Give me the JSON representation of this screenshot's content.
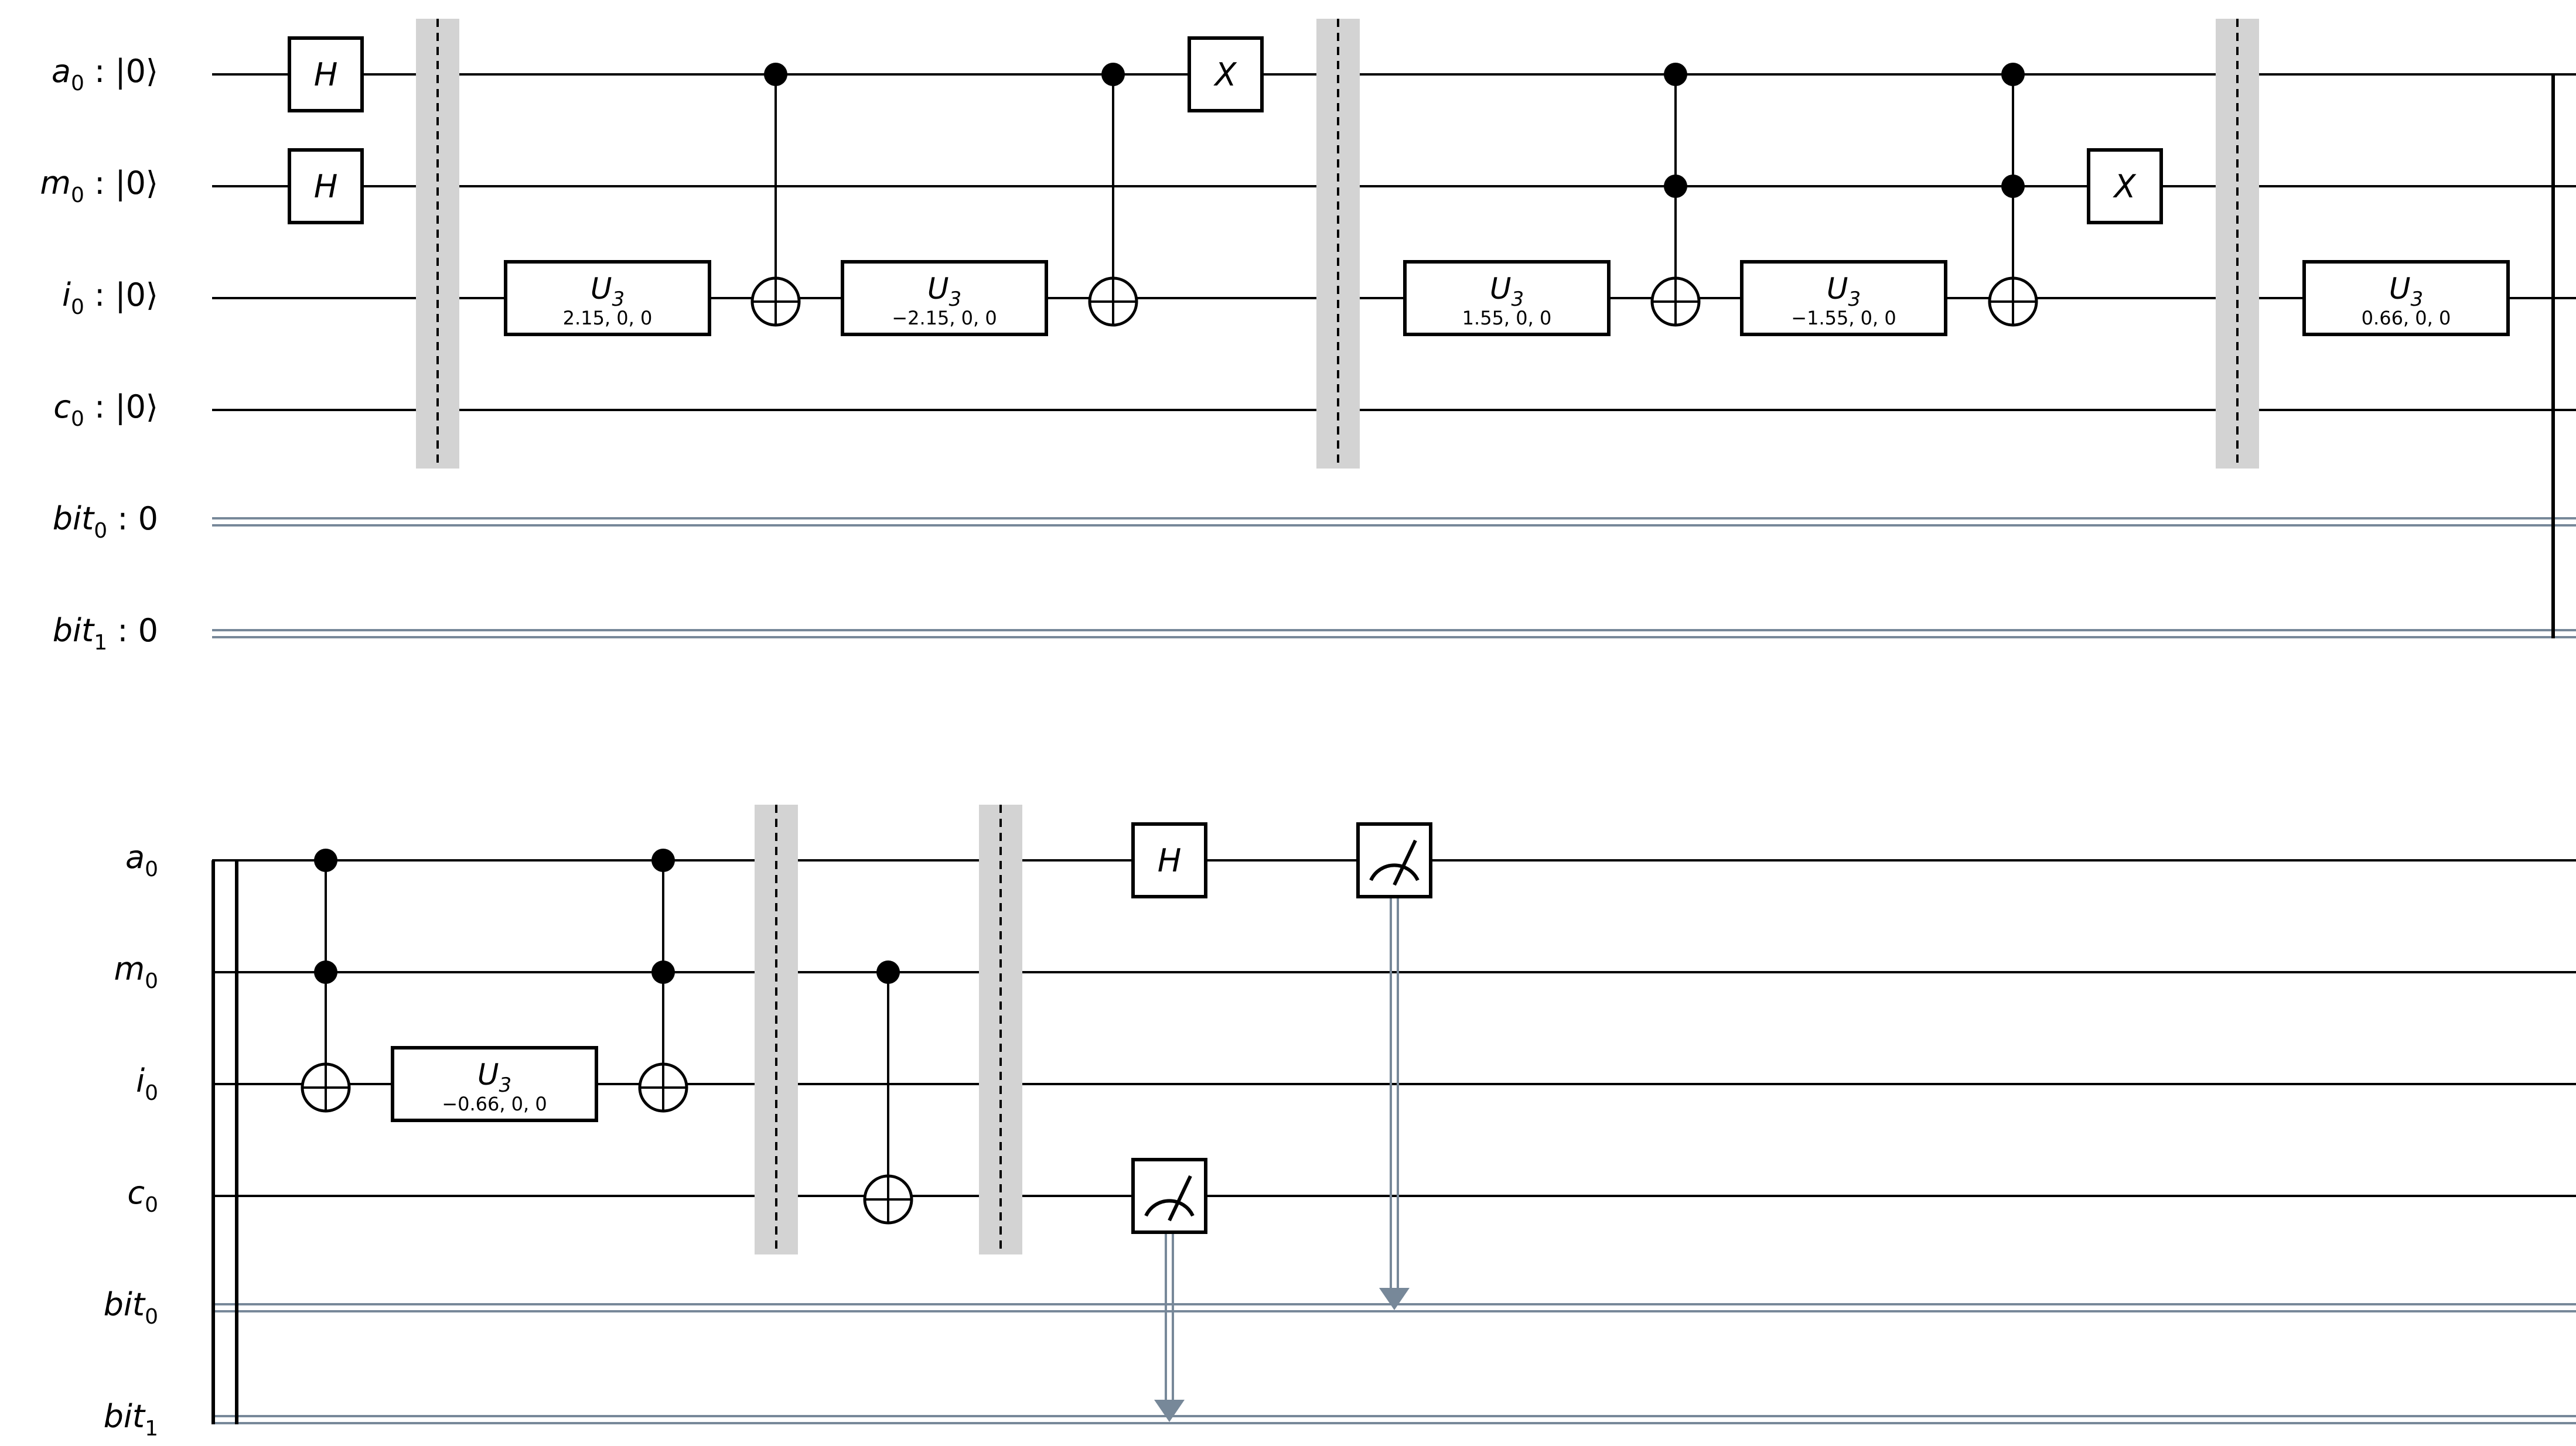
{
  "row1": {
    "labels": [
      {
        "base": "a",
        "sub": "0",
        "suffix": " : |0⟩"
      },
      {
        "base": "m",
        "sub": "0",
        "suffix": " : |0⟩"
      },
      {
        "base": "i",
        "sub": "0",
        "suffix": " : |0⟩"
      },
      {
        "base": "c",
        "sub": "0",
        "suffix": " : |0⟩"
      },
      {
        "base": "bit",
        "sub": "0",
        "suffix": " :  0"
      },
      {
        "base": "bit",
        "sub": "1",
        "suffix": " :  0"
      }
    ]
  },
  "row2": {
    "labels": [
      {
        "base": "a",
        "sub": "0"
      },
      {
        "base": "m",
        "sub": "0"
      },
      {
        "base": "i",
        "sub": "0"
      },
      {
        "base": "c",
        "sub": "0"
      },
      {
        "base": "bit",
        "sub": "0"
      },
      {
        "base": "bit",
        "sub": "1"
      }
    ]
  },
  "gates": {
    "h": "H",
    "x": "X",
    "u3": "U",
    "u3_sub": "3",
    "u3_params": [
      "2.15, 0, 0",
      "−2.15, 0, 0",
      "1.55, 0, 0",
      "−1.55, 0, 0",
      "0.66, 0, 0",
      "−0.66, 0, 0"
    ]
  },
  "colors": {
    "wire": "#000000",
    "classical_wire": "#778899",
    "barrier": "#d3d3d3"
  }
}
